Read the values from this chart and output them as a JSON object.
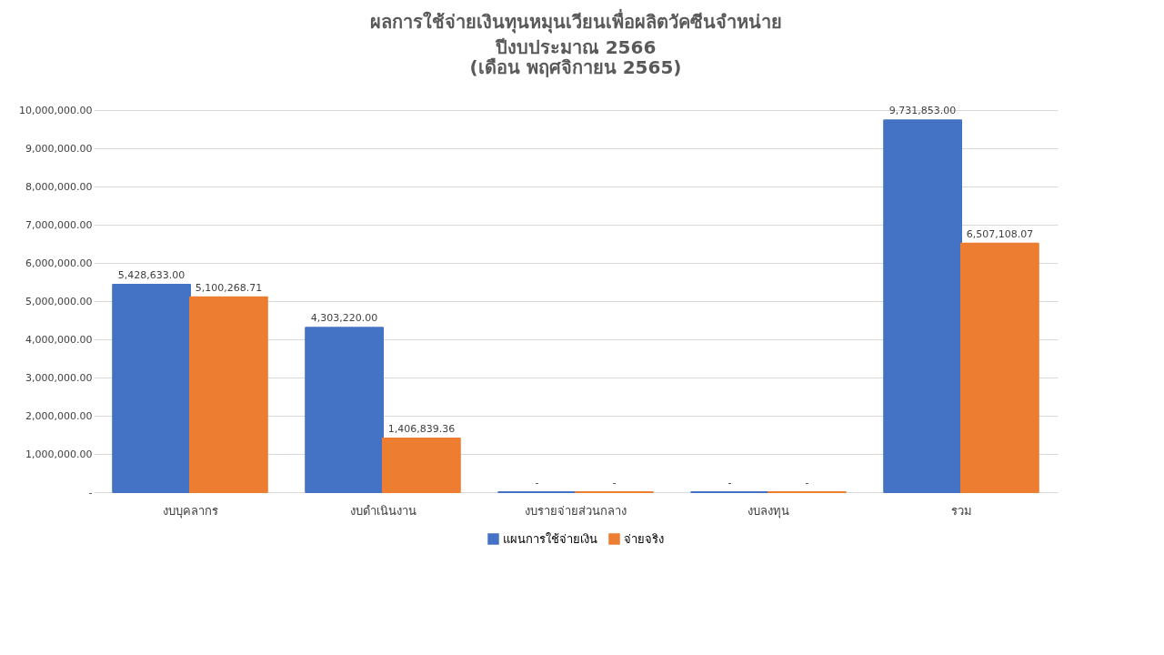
{
  "chart_data": {
    "type": "bar",
    "title": "ผลการใช้จ่ายเงินทุนหมุนเวียนเพื่อผลิตวัคซีนจำหน่าย",
    "subtitle": "ปีงบประมาณ 2566\n(เดือน พฤศจิกายน 2565)",
    "categories": [
      "งบบุคลากร",
      "งบดำเนินงาน",
      "งบรายจ่ายส่วนกลาง",
      "งบลงทุน",
      "รวม"
    ],
    "series": [
      {
        "name": "แผนการใช้จ่ายเงิน",
        "color": "#4472c4",
        "values": [
          5428633,
          4303220,
          0,
          0,
          9731853
        ],
        "value_labels": [
          "5,428,633.00",
          "4,303,220.00",
          "-",
          "-",
          "9,731,853.00"
        ]
      },
      {
        "name": "จ่ายจริง",
        "color": "#ed7d31",
        "values": [
          5100268.71,
          1406839.36,
          0,
          0,
          6507108.07
        ],
        "value_labels": [
          "5,100,268.71",
          "1,406,839.36",
          "-",
          "-",
          "6,507,108.07"
        ]
      }
    ],
    "ylim": [
      0,
      10000000
    ],
    "yticks": [
      {
        "value": 0,
        "label": "-"
      },
      {
        "value": 1000000,
        "label": "1,000,000.00"
      },
      {
        "value": 2000000,
        "label": "2,000,000.00"
      },
      {
        "value": 3000000,
        "label": "3,000,000.00"
      },
      {
        "value": 4000000,
        "label": "4,000,000.00"
      },
      {
        "value": 5000000,
        "label": "5,000,000.00"
      },
      {
        "value": 6000000,
        "label": "6,000,000.00"
      },
      {
        "value": 7000000,
        "label": "7,000,000.00"
      },
      {
        "value": 8000000,
        "label": "8,000,000.00"
      },
      {
        "value": 9000000,
        "label": "9,000,000.00"
      },
      {
        "value": 10000000,
        "label": "10,000,000.00"
      }
    ],
    "grid": "y",
    "legend": "bottom"
  }
}
